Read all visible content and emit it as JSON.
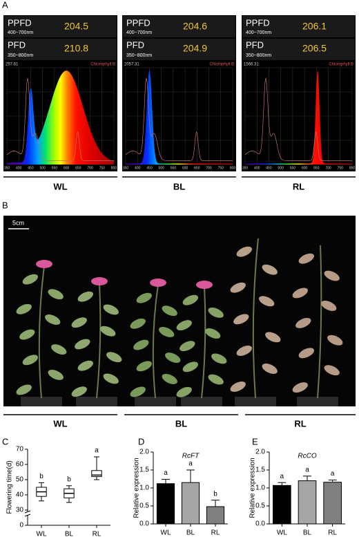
{
  "panel_a": {
    "label": "A",
    "screens": [
      {
        "ppfd_label": "PPFD",
        "ppfd_range": "400~700nm",
        "ppfd_value": 204.5,
        "pfd_label": "PFD",
        "pfd_range": "350~800nm",
        "pfd_value": 210.8,
        "peak": 257.81,
        "legend": "Chlorophyll B",
        "condition": "WL"
      },
      {
        "ppfd_label": "PPFD",
        "ppfd_range": "400~700nm",
        "ppfd_value": 204.6,
        "pfd_label": "PFD",
        "pfd_range": "350~800nm",
        "pfd_value": 204.9,
        "peak": 2057.31,
        "legend": "Chlorophyll B",
        "condition": "BL"
      },
      {
        "ppfd_label": "PPFD",
        "ppfd_range": "400~700nm",
        "ppfd_value": 206.1,
        "pfd_label": "PFD",
        "pfd_range": "350~800nm",
        "pfd_value": 206.5,
        "peak": 1566.31,
        "legend": "Chlorophyll B",
        "condition": "RL"
      }
    ],
    "spectrum_ticks": [
      350,
      400,
      450,
      500,
      550,
      600,
      650,
      700,
      750,
      800
    ]
  },
  "panel_b": {
    "label": "B",
    "scale_bar": "5cm",
    "conditions": [
      "WL",
      "BL",
      "RL"
    ]
  },
  "chart_data": [
    {
      "type": "box",
      "panel": "C",
      "ylabel": "Flowering time(d)",
      "categories": [
        "WL",
        "BL",
        "RL"
      ],
      "boxes": [
        {
          "whisker_low": 36,
          "q1": 39,
          "median": 42,
          "q3": 45,
          "whisker_high": 48
        },
        {
          "whisker_low": 35,
          "q1": 38,
          "median": 41,
          "q3": 44,
          "whisker_high": 46
        },
        {
          "whisker_low": 50,
          "q1": 52,
          "median": 53,
          "q3": 56,
          "whisker_high": 65
        }
      ],
      "letters": [
        "b",
        "b",
        "a"
      ],
      "ylim": [
        30,
        70
      ],
      "yticks": [
        0,
        30,
        40,
        50,
        60,
        70
      ],
      "axis_break": true,
      "color": "#ffffff"
    },
    {
      "type": "bar",
      "panel": "D",
      "subtitle": "RcFT",
      "ylabel": "Relative expression",
      "categories": [
        "WL",
        "BL",
        "RL"
      ],
      "values": [
        1.12,
        1.15,
        0.48
      ],
      "errors": [
        0.12,
        0.35,
        0.18
      ],
      "colors": [
        "#000000",
        "#a6a6a6",
        "#7f7f7f"
      ],
      "letters": [
        "a",
        "a",
        "b"
      ],
      "ylim": [
        0,
        2
      ],
      "yticks": [
        {
          "value": 0,
          "label": "0.0"
        },
        {
          "value": 0.5,
          "label": "0.5"
        },
        {
          "value": 1,
          "label": "1.0"
        },
        {
          "value": 1.5,
          "label": "1.5"
        },
        {
          "value": 2,
          "label": "2.0"
        }
      ]
    },
    {
      "type": "bar",
      "panel": "E",
      "subtitle": "RcCO",
      "ylabel": "Relative expression",
      "categories": [
        "WL",
        "BL",
        "RL"
      ],
      "values": [
        1.07,
        1.2,
        1.16
      ],
      "errors": [
        0.08,
        0.13,
        0.06
      ],
      "colors": [
        "#000000",
        "#a6a6a6",
        "#7f7f7f"
      ],
      "letters": [
        "a",
        "a",
        "a"
      ],
      "ylim": [
        0,
        2
      ],
      "yticks": [
        {
          "value": 0,
          "label": "0.0"
        },
        {
          "value": 0.5,
          "label": "0.5"
        },
        {
          "value": 1,
          "label": "1.0"
        },
        {
          "value": 1.5,
          "label": "1.5"
        },
        {
          "value": 2,
          "label": "2.0"
        }
      ]
    }
  ]
}
